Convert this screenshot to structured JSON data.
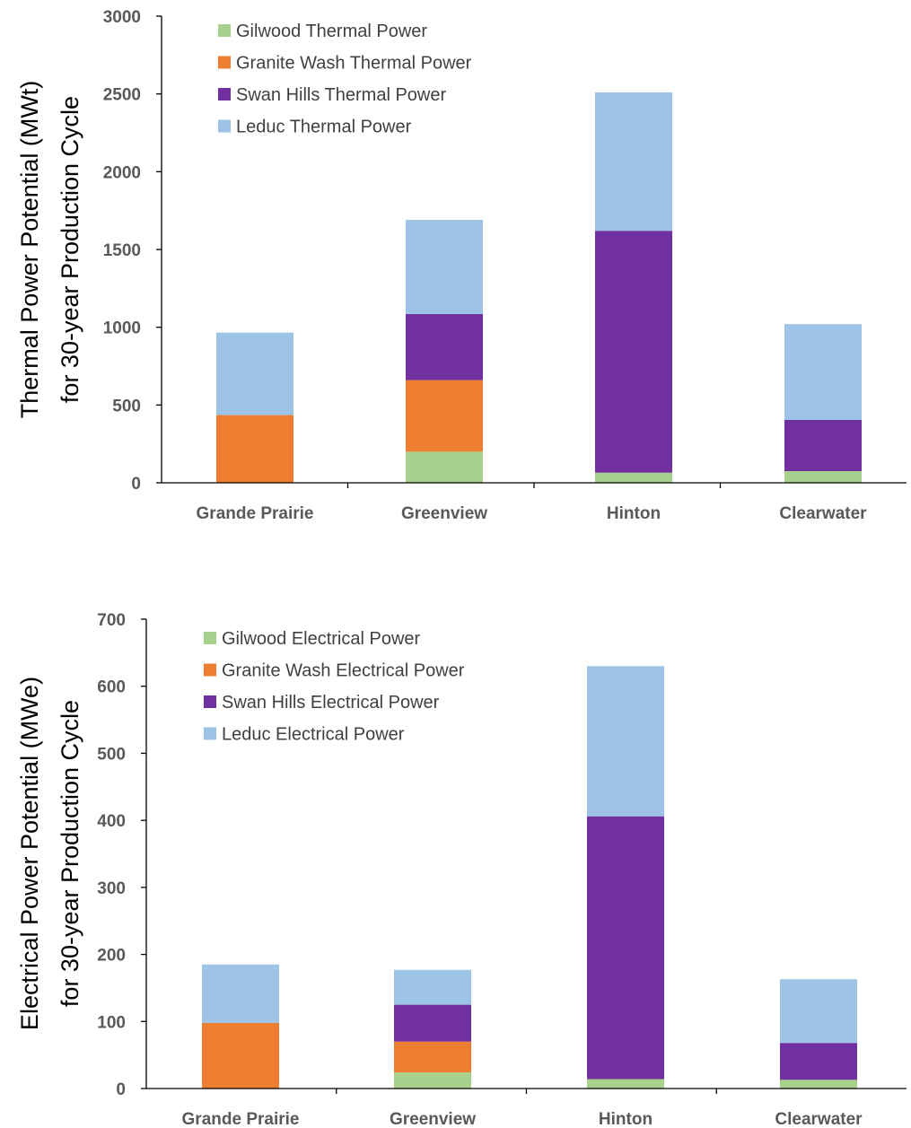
{
  "chart_data": [
    {
      "type": "bar",
      "stacked": true,
      "categories": [
        "Grande Prairie",
        "Greenview",
        "Hinton",
        "Clearwater"
      ],
      "ylabel": [
        "Thermal Power Potential (MWt)",
        "for 30-year Production Cycle"
      ],
      "ylim": [
        0,
        3000
      ],
      "yticks": [
        0,
        500,
        1000,
        1500,
        2000,
        2500,
        3000
      ],
      "grid": false,
      "legend_position": "top-left",
      "series": [
        {
          "name": "Gilwood Thermal Power",
          "color": "#a9d18e",
          "values": [
            0,
            200,
            65,
            75
          ]
        },
        {
          "name": "Granite Wash Thermal Power",
          "color": "#ed7d31",
          "values": [
            435,
            460,
            0,
            0
          ]
        },
        {
          "name": "Swan Hills Thermal Power",
          "color": "#7030a0",
          "values": [
            0,
            425,
            1555,
            330
          ]
        },
        {
          "name": "Leduc Thermal Power",
          "color": "#9dc3e6",
          "values": [
            530,
            605,
            890,
            615
          ]
        }
      ]
    },
    {
      "type": "bar",
      "stacked": true,
      "categories": [
        "Grande Prairie",
        "Greenview",
        "Hinton",
        "Clearwater"
      ],
      "ylabel": [
        "Electrical Power Potential (MWe)",
        "for 30-year Production Cycle"
      ],
      "ylim": [
        0,
        700
      ],
      "yticks": [
        0,
        100,
        200,
        300,
        400,
        500,
        600,
        700
      ],
      "grid": false,
      "legend_position": "top-left",
      "series": [
        {
          "name": "Gilwood Electrical Power",
          "color": "#a9d18e",
          "values": [
            0,
            24,
            14,
            13
          ]
        },
        {
          "name": "Granite Wash Electrical Power",
          "color": "#ed7d31",
          "values": [
            98,
            46,
            0,
            0
          ]
        },
        {
          "name": "Swan Hills Electrical Power",
          "color": "#7030a0",
          "values": [
            0,
            55,
            392,
            55
          ]
        },
        {
          "name": "Leduc Electrical Power",
          "color": "#9dc3e6",
          "values": [
            87,
            52,
            224,
            95
          ]
        }
      ]
    }
  ]
}
